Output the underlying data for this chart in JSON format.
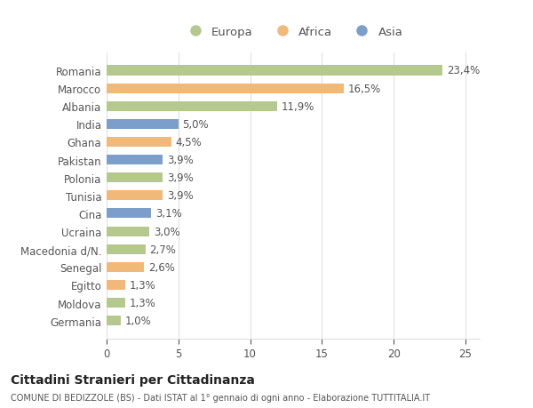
{
  "countries": [
    "Romania",
    "Marocco",
    "Albania",
    "India",
    "Ghana",
    "Pakistan",
    "Polonia",
    "Tunisia",
    "Cina",
    "Ucraina",
    "Macedonia d/N.",
    "Senegal",
    "Egitto",
    "Moldova",
    "Germania"
  ],
  "values": [
    23.4,
    16.5,
    11.9,
    5.0,
    4.5,
    3.9,
    3.9,
    3.9,
    3.1,
    3.0,
    2.7,
    2.6,
    1.3,
    1.3,
    1.0
  ],
  "labels": [
    "23,4%",
    "16,5%",
    "11,9%",
    "5,0%",
    "4,5%",
    "3,9%",
    "3,9%",
    "3,9%",
    "3,1%",
    "3,0%",
    "2,7%",
    "2,6%",
    "1,3%",
    "1,3%",
    "1,0%"
  ],
  "continents": [
    "Europa",
    "Africa",
    "Europa",
    "Asia",
    "Africa",
    "Asia",
    "Europa",
    "Africa",
    "Asia",
    "Europa",
    "Europa",
    "Africa",
    "Africa",
    "Europa",
    "Europa"
  ],
  "colors": {
    "Europa": "#b5c98e",
    "Africa": "#f0b97a",
    "Asia": "#7b9fca"
  },
  "bg_color": "#ffffff",
  "plot_bg_color": "#ffffff",
  "title1": "Cittadini Stranieri per Cittadinanza",
  "title2": "COMUNE DI BEDIZZOLE (BS) - Dati ISTAT al 1° gennaio di ogni anno - Elaborazione TUTTITALIA.IT",
  "xlim": [
    0,
    26
  ],
  "xticks": [
    0,
    5,
    10,
    15,
    20,
    25
  ],
  "bar_height": 0.55,
  "label_fontsize": 8.5,
  "tick_fontsize": 8.5,
  "legend_fontsize": 9.5,
  "grid_color": "#e0e0e0",
  "text_color": "#555555"
}
